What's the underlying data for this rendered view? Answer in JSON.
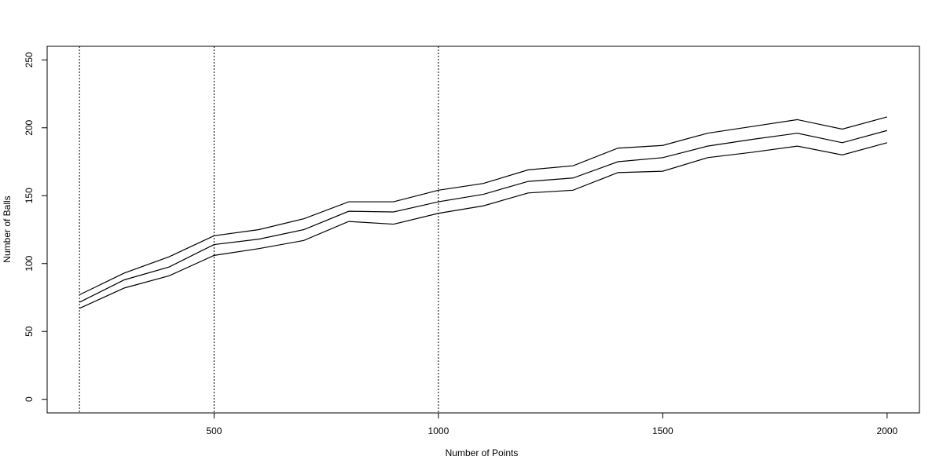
{
  "chart_data": {
    "type": "line",
    "x_label": "Number of Points",
    "y_label": "Number of Balls",
    "x": [
      200,
      300,
      400,
      500,
      600,
      700,
      800,
      900,
      1000,
      1100,
      1200,
      1300,
      1400,
      1500,
      1600,
      1700,
      1800,
      1900,
      2000
    ],
    "series": [
      {
        "color": "#000000",
        "values": [
          77,
          93,
          105,
          120.5,
          125,
          133,
          145.5,
          145.5,
          154,
          159,
          169,
          172,
          185,
          187,
          196,
          201,
          206,
          199,
          208
        ]
      },
      {
        "color": "#000000",
        "values": [
          71.5,
          88,
          97.5,
          114,
          118,
          125,
          138.5,
          138,
          145.5,
          151,
          160.5,
          163,
          175,
          178,
          186.5,
          191.5,
          196,
          189,
          198
        ]
      },
      {
        "color": "#000000",
        "values": [
          67,
          82,
          91,
          106,
          111,
          117,
          131,
          129,
          137,
          142.5,
          152,
          154,
          167,
          168,
          178,
          182,
          186.5,
          180,
          189
        ]
      }
    ],
    "vlines": [
      200,
      500,
      1000
    ],
    "xlim": [
      128,
      2072
    ],
    "ylim": [
      -10,
      260
    ],
    "xticks": [
      500,
      1000,
      1500,
      2000
    ],
    "yticks": [
      0,
      50,
      100,
      150,
      200,
      250
    ]
  }
}
